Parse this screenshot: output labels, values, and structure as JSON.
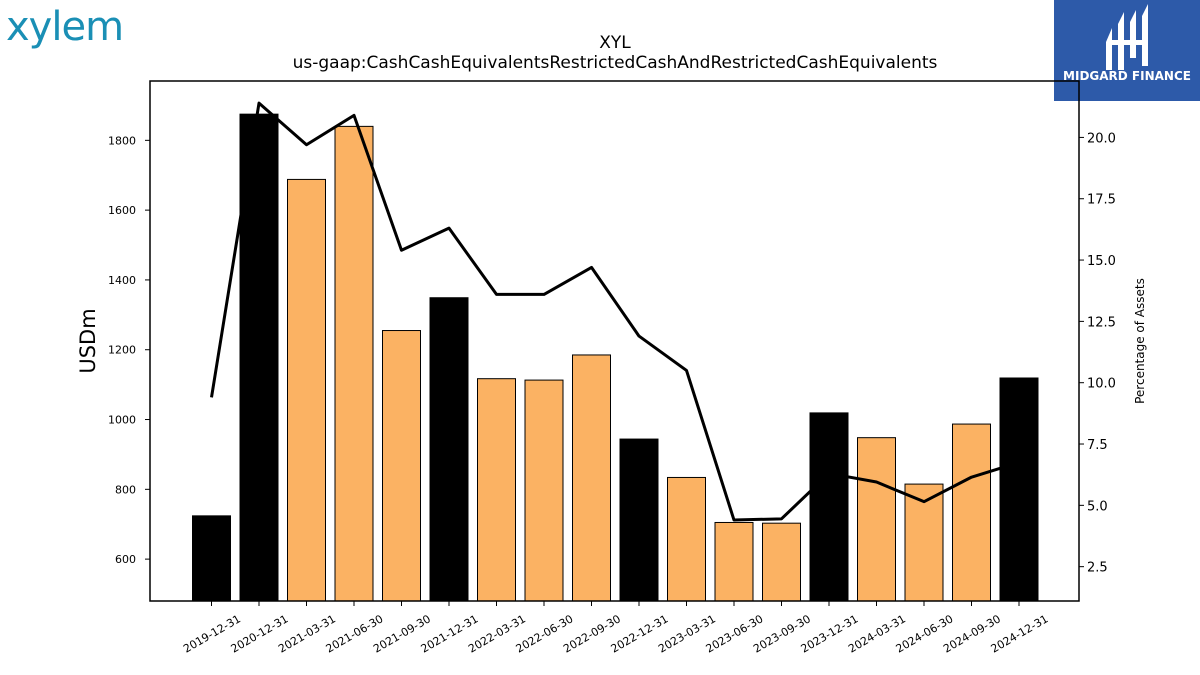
{
  "logos": {
    "left_text": "xylem",
    "right_text": "MIDGARD FINANCE"
  },
  "chart_data": {
    "type": "bar",
    "title": "XYL",
    "subtitle": "us-gaap:CashCashEquivalentsRestrictedCashAndRestrictedCashEquivalents",
    "ylabel": "USDm",
    "y2label": "Percentage of Assets",
    "categories": [
      "2019-12-31",
      "2020-12-31",
      "2021-03-31",
      "2021-06-30",
      "2021-09-30",
      "2021-12-31",
      "2022-03-31",
      "2022-06-30",
      "2022-09-30",
      "2022-12-31",
      "2023-03-31",
      "2023-06-30",
      "2023-09-30",
      "2023-12-31",
      "2024-03-31",
      "2024-06-30",
      "2024-09-30",
      "2024-12-31"
    ],
    "series": [
      {
        "type": "bar",
        "values": [
          724,
          1875,
          1688,
          1840,
          1255,
          1349,
          1117,
          1113,
          1185,
          944,
          834,
          705,
          703,
          1019,
          948,
          815,
          987,
          1119
        ],
        "bar_colors": [
          "#000000",
          "#000000",
          "#fbb263",
          "#fbb263",
          "#fbb263",
          "#000000",
          "#fbb263",
          "#fbb263",
          "#fbb263",
          "#000000",
          "#fbb263",
          "#fbb263",
          "#fbb263",
          "#000000",
          "#fbb263",
          "#fbb263",
          "#fbb263",
          "#000000"
        ]
      },
      {
        "type": "line",
        "axis": "right",
        "color": "#000000",
        "values": [
          9.4,
          21.4,
          19.7,
          20.9,
          15.4,
          16.3,
          13.6,
          13.6,
          14.7,
          11.9,
          10.5,
          4.4,
          4.45,
          6.3,
          5.95,
          5.15,
          6.15,
          6.75
        ]
      }
    ],
    "ylim": [
      480,
      1970
    ],
    "y_ticks": [
      600,
      800,
      1000,
      1200,
      1400,
      1600,
      1800
    ],
    "y2lim": [
      1.1,
      22.3
    ],
    "y2_ticks": [
      "2.5",
      "5.0",
      "7.5",
      "10.0",
      "12.5",
      "15.0",
      "17.5",
      "20.0"
    ],
    "grid": false
  }
}
